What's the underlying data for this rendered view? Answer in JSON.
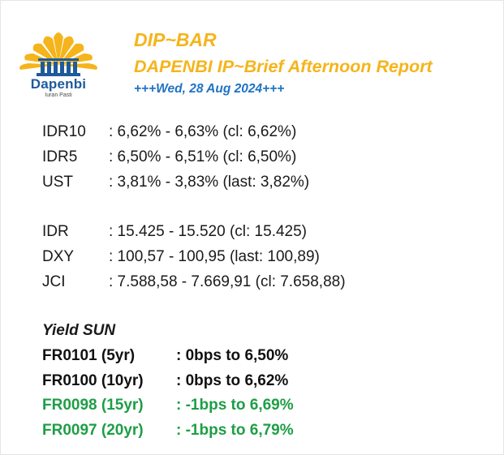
{
  "header": {
    "title": "DIP~BAR",
    "subtitle": "DAPENBI IP~Brief Afternoon Report",
    "date": "+++Wed, 28 Aug 2024+++"
  },
  "logo": {
    "name": "Dapenbi",
    "tagline": "Iuran Pasti",
    "colors": {
      "rays": "#f5b41b",
      "building": "#1e5a9c"
    }
  },
  "rates": [
    {
      "label": "IDR10",
      "value": ": 6,62% - 6,63% (cl: 6,62%)"
    },
    {
      "label": "IDR5",
      "value": ": 6,50% - 6,51% (cl: 6,50%)"
    },
    {
      "label": "UST",
      "value": ": 3,81% - 3,83% (last: 3,82%)"
    }
  ],
  "markets": [
    {
      "label": "IDR",
      "value": ": 15.425 - 15.520 (cl: 15.425)"
    },
    {
      "label": "DXY",
      "value": ": 100,57 - 100,95 (last: 100,89)"
    },
    {
      "label": "JCI",
      "value": ": 7.588,58 - 7.669,91 (cl: 7.658,88)"
    }
  ],
  "yield": {
    "title": "Yield SUN",
    "rows": [
      {
        "label": "FR0101 (5yr)",
        "value": ": 0bps to 6,50%",
        "color": "#111111"
      },
      {
        "label": "FR0100 (10yr)",
        "value": ": 0bps to 6,62%",
        "color": "#111111"
      },
      {
        "label": "FR0098 (15yr)",
        "value": ": -1bps to 6,69%",
        "color": "#1e9e46"
      },
      {
        "label": "FR0097 (20yr)",
        "value": ": -1bps to 6,79%",
        "color": "#1e9e46"
      }
    ]
  }
}
